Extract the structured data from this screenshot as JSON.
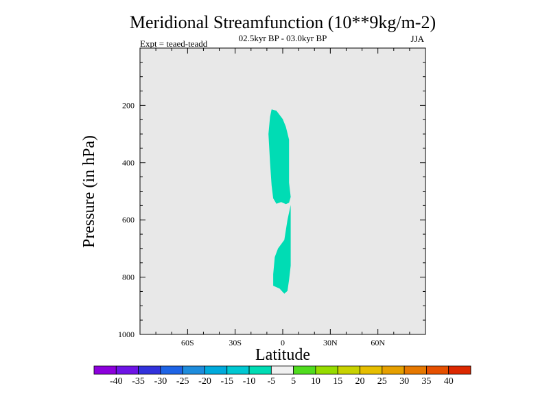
{
  "chart_data": {
    "type": "contour",
    "title": "Meridional Streamfunction (10**9kg/m-2)",
    "subtitle_period": "02.5kyr BP - 03.0kyr BP",
    "experiment_label": "Expt = teaed-teadd",
    "season": "JJA",
    "xlabel": "Latitude",
    "ylabel": "Pressure (in hPa)",
    "xlim": [
      -90,
      90
    ],
    "ylim": [
      1000,
      0
    ],
    "x_ticks": [
      {
        "value": -60,
        "label": "60S"
      },
      {
        "value": -30,
        "label": "30S"
      },
      {
        "value": 0,
        "label": "0"
      },
      {
        "value": 30,
        "label": "30N"
      },
      {
        "value": 60,
        "label": "60N"
      }
    ],
    "y_ticks": [
      {
        "value": 200,
        "label": "200"
      },
      {
        "value": 400,
        "label": "400"
      },
      {
        "value": 600,
        "label": "600"
      },
      {
        "value": 800,
        "label": "800"
      },
      {
        "value": 1000,
        "label": "1000"
      }
    ],
    "background_color": "#e8e8e8",
    "filled_regions": [
      {
        "name": "upper-cell",
        "level_range": [
          -10,
          -5
        ],
        "color": "#00dcb4",
        "points": [
          [
            -7,
            214
          ],
          [
            -4,
            219
          ],
          [
            0,
            248
          ],
          [
            2,
            275
          ],
          [
            4,
            320
          ],
          [
            4,
            420
          ],
          [
            4,
            470
          ],
          [
            5,
            520
          ],
          [
            4,
            540
          ],
          [
            2,
            545
          ],
          [
            -1,
            538
          ],
          [
            -4,
            544
          ],
          [
            -6,
            525
          ],
          [
            -7,
            480
          ],
          [
            -8,
            400
          ],
          [
            -9,
            300
          ],
          [
            -8,
            240
          ]
        ]
      },
      {
        "name": "lower-cell",
        "level_range": [
          -10,
          -5
        ],
        "color": "#00dcb4",
        "points": [
          [
            5,
            548
          ],
          [
            5,
            650
          ],
          [
            5,
            760
          ],
          [
            4,
            810
          ],
          [
            3,
            848
          ],
          [
            1,
            858
          ],
          [
            -2,
            840
          ],
          [
            -6,
            830
          ],
          [
            -6,
            790
          ],
          [
            -5,
            730
          ],
          [
            -3,
            700
          ],
          [
            1,
            670
          ],
          [
            3,
            600
          ]
        ]
      }
    ],
    "colorbar": {
      "labels": [
        "-40",
        "-35",
        "-30",
        "-25",
        "-20",
        "-15",
        "-10",
        "-5",
        "5",
        "10",
        "15",
        "20",
        "25",
        "30",
        "35",
        "40"
      ],
      "colors": [
        "#8c00dc",
        "#6e14e6",
        "#3232dc",
        "#1e64e6",
        "#1e8cdc",
        "#00aadc",
        "#00c8d2",
        "#00dcb4",
        "#f0f0f0",
        "#50dc1e",
        "#96dc00",
        "#c8d200",
        "#e6be00",
        "#e6a000",
        "#e67800",
        "#e65000",
        "#dc2800"
      ]
    }
  }
}
